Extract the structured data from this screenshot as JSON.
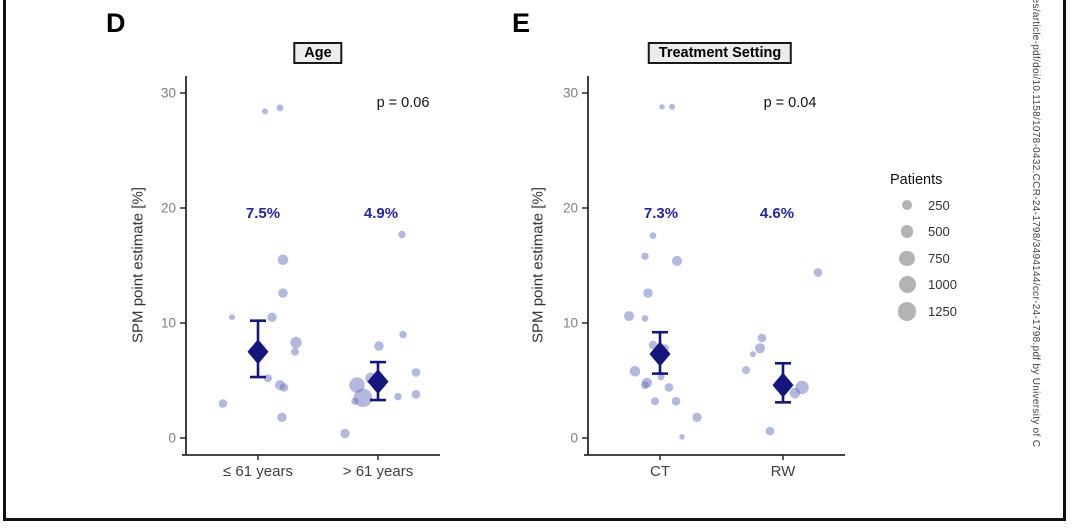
{
  "watermark_text": "res/article-pdf/doi/10.1158/1078-0432.CCR-24-1798/3494144/ccr-24-1798.pdf by University of C",
  "legend": {
    "title": "Patients",
    "sizes": [
      250,
      500,
      750,
      1000,
      1250
    ]
  },
  "colors": {
    "bubble": "#6872bd",
    "summary": "#15157e",
    "estimate_label": "#2424a8",
    "legend_circle": "#b3b3b3",
    "axis": "#2b2b2b",
    "tick_label": "#7f7f7f",
    "category_label": "#3f3f3f"
  },
  "chart_data": [
    {
      "panel": "D",
      "type": "scatter",
      "title": "Age",
      "p_value_label": "p = 0.06",
      "p_value": 0.06,
      "ylabel": "SPM point estimate [%]",
      "ylim": [
        0,
        30
      ],
      "yticks": [
        0,
        10,
        20,
        30
      ],
      "legend_position": "right",
      "grid": false,
      "groups": [
        {
          "label": "≤ 61 years",
          "estimate_label": "7.5%",
          "estimate": 7.5,
          "ci": [
            5.3,
            10.2
          ],
          "points": [
            {
              "v": 28.4,
              "n": 45,
              "dx": 7
            },
            {
              "v": 28.7,
              "n": 80,
              "dx": 22
            },
            {
              "v": 15.5,
              "n": 294,
              "dx": 25
            },
            {
              "v": 12.6,
              "n": 208,
              "dx": 25
            },
            {
              "v": 10.5,
              "n": 45,
              "dx": -26
            },
            {
              "v": 10.5,
              "n": 208,
              "dx": 14
            },
            {
              "v": 8.3,
              "n": 360,
              "dx": 38
            },
            {
              "v": 7.5,
              "n": 126,
              "dx": 37
            },
            {
              "v": 5.2,
              "n": 126,
              "dx": 10
            },
            {
              "v": 4.6,
              "n": 250,
              "dx": 22
            },
            {
              "v": 4.4,
              "n": 158,
              "dx": 26
            },
            {
              "v": 3.0,
              "n": 158,
              "dx": -35
            },
            {
              "v": 1.8,
              "n": 208,
              "dx": 24
            }
          ]
        },
        {
          "label": "> 61 years",
          "estimate_label": "4.9%",
          "estimate": 4.9,
          "ci": [
            3.3,
            6.6
          ],
          "points": [
            {
              "v": 17.7,
              "n": 97,
              "dx": 24
            },
            {
              "v": 9.0,
              "n": 97,
              "dx": 25
            },
            {
              "v": 8.0,
              "n": 208,
              "dx": 1
            },
            {
              "v": 5.7,
              "n": 158,
              "dx": 38
            },
            {
              "v": 5.2,
              "n": 360,
              "dx": -7
            },
            {
              "v": 4.6,
              "n": 787,
              "dx": -21
            },
            {
              "v": 3.8,
              "n": 158,
              "dx": 38
            },
            {
              "v": 3.6,
              "n": 97,
              "dx": 20
            },
            {
              "v": 3.5,
              "n": 1250,
              "dx": -15
            },
            {
              "v": 3.2,
              "n": 97,
              "dx": -23
            },
            {
              "v": 0.4,
              "n": 208,
              "dx": -33
            }
          ]
        }
      ]
    },
    {
      "panel": "E",
      "type": "scatter",
      "title": "Treatment Setting",
      "p_value_label": "p = 0.04",
      "p_value": 0.04,
      "ylabel": "SPM point estimate [%]",
      "ylim": [
        0,
        30
      ],
      "yticks": [
        0,
        10,
        20,
        30
      ],
      "legend_position": "right",
      "grid": false,
      "groups": [
        {
          "label": "CT",
          "estimate_label": "7.3%",
          "estimate": 7.3,
          "ci": [
            5.6,
            9.2
          ],
          "points": [
            {
              "v": 28.8,
              "n": 30,
              "dx": 2
            },
            {
              "v": 28.8,
              "n": 45,
              "dx": 12
            },
            {
              "v": 17.6,
              "n": 66,
              "dx": -7
            },
            {
              "v": 15.8,
              "n": 97,
              "dx": -15
            },
            {
              "v": 15.4,
              "n": 250,
              "dx": 17
            },
            {
              "v": 12.6,
              "n": 208,
              "dx": -12
            },
            {
              "v": 10.6,
              "n": 250,
              "dx": -31
            },
            {
              "v": 10.4,
              "n": 66,
              "dx": -15
            },
            {
              "v": 8.1,
              "n": 158,
              "dx": -7
            },
            {
              "v": 7.8,
              "n": 126,
              "dx": 5
            },
            {
              "v": 5.8,
              "n": 294,
              "dx": -25
            },
            {
              "v": 5.3,
              "n": 66,
              "dx": 1
            },
            {
              "v": 4.8,
              "n": 250,
              "dx": -13
            },
            {
              "v": 4.6,
              "n": 126,
              "dx": -15
            },
            {
              "v": 4.4,
              "n": 158,
              "dx": 9
            },
            {
              "v": 3.2,
              "n": 126,
              "dx": -5
            },
            {
              "v": 3.2,
              "n": 158,
              "dx": 16
            },
            {
              "v": 1.8,
              "n": 208,
              "dx": 37
            },
            {
              "v": 0.1,
              "n": 30,
              "dx": 22
            }
          ]
        },
        {
          "label": "RW",
          "estimate_label": "4.6%",
          "estimate": 4.6,
          "ci": [
            3.1,
            6.5
          ],
          "points": [
            {
              "v": 14.4,
              "n": 158,
              "dx": 35
            },
            {
              "v": 8.7,
              "n": 158,
              "dx": -21
            },
            {
              "v": 7.8,
              "n": 250,
              "dx": -23
            },
            {
              "v": 7.3,
              "n": 45,
              "dx": -30
            },
            {
              "v": 5.9,
              "n": 126,
              "dx": -37
            },
            {
              "v": 4.4,
              "n": 552,
              "dx": 19
            },
            {
              "v": 3.9,
              "n": 294,
              "dx": 12
            },
            {
              "v": 0.6,
              "n": 158,
              "dx": -13
            }
          ]
        }
      ]
    }
  ]
}
